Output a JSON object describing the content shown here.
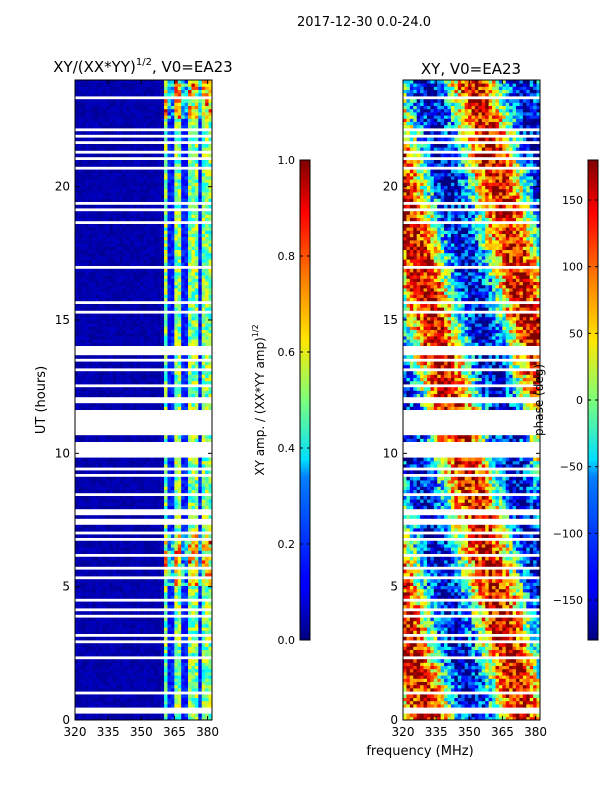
{
  "figure": {
    "suptitle": "2017-12-30 0.0-24.0",
    "xlabel_shared": "frequency (MHz)"
  },
  "chart_data": [
    {
      "type": "heatmap",
      "title_main": "XY/(XX*YY)",
      "title_exp": "1/2",
      "title_rest": ", V0=EA23",
      "xlabel": "frequency (MHz)",
      "ylabel": "UT (hours)",
      "xlim": [
        320,
        382
      ],
      "ylim": [
        0,
        24
      ],
      "xticks": [
        "320",
        "335",
        "350",
        "365",
        "380"
      ],
      "xtick_values": [
        320,
        335,
        350,
        365,
        380
      ],
      "yticks": [
        "0",
        "5",
        "10",
        "15",
        "20"
      ],
      "ytick_values": [
        0,
        5,
        10,
        15,
        20
      ],
      "colorbar": {
        "label_main": "XY amp. / (XX*YY amp)",
        "label_exp": "1/2",
        "range": [
          0.0,
          1.0
        ],
        "ticks": [
          "0.0",
          "0.2",
          "0.4",
          "0.6",
          "0.8",
          "1.0"
        ],
        "tick_values": [
          0.0,
          0.2,
          0.4,
          0.6,
          0.8,
          1.0
        ],
        "colormap": "jet"
      }
    },
    {
      "type": "heatmap",
      "title": "XY, V0=EA23",
      "xlabel": "frequency (MHz)",
      "ylabel": "",
      "xlim": [
        320,
        382
      ],
      "ylim": [
        0,
        24
      ],
      "xticks": [
        "320",
        "335",
        "350",
        "365",
        "380"
      ],
      "xtick_values": [
        320,
        335,
        350,
        365,
        380
      ],
      "yticks": [
        "0",
        "5",
        "10",
        "15",
        "20"
      ],
      "ytick_values": [
        0,
        5,
        10,
        15,
        20
      ],
      "colorbar": {
        "label": "phase (deg)",
        "range": [
          -180,
          180
        ],
        "ticks": [
          "−150",
          "−100",
          "−50",
          "0",
          "50",
          "100",
          "150"
        ],
        "tick_values": [
          -150,
          -100,
          -50,
          0,
          50,
          100,
          150
        ],
        "colormap": "jet"
      }
    }
  ]
}
